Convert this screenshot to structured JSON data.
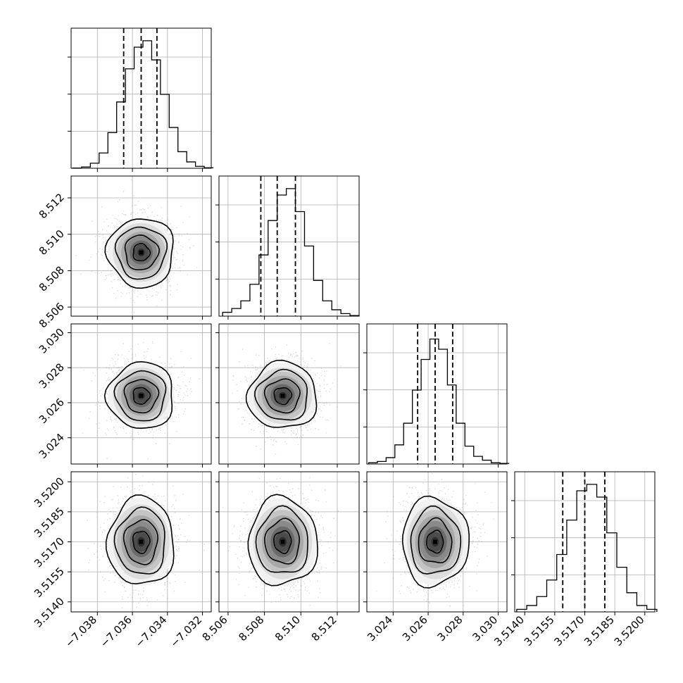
{
  "chart_data": {
    "type": "corner",
    "n_params": 4,
    "params": [
      {
        "range": [
          -7.0395,
          -7.0315
        ],
        "ticks": [
          -7.038,
          -7.036,
          -7.034,
          -7.032
        ],
        "tick_labels": [
          "−7.038",
          "−7.036",
          "−7.034",
          "−7.032"
        ],
        "mean": -7.0355,
        "sd": 0.00095,
        "quantiles": [
          -7.0365,
          -7.0355,
          -7.0346
        ],
        "hist_bins": [
          -7.0394,
          -7.0389,
          -7.0384,
          -7.0379,
          -7.0374,
          -7.0369,
          -7.0364,
          -7.0359,
          -7.0354,
          -7.0349,
          -7.0344,
          -7.0339,
          -7.0334,
          -7.0329,
          -7.0324,
          -7.0319
        ],
        "hist_counts": [
          0.002,
          0.01,
          0.04,
          0.12,
          0.28,
          0.52,
          0.78,
          0.95,
          1.0,
          0.85,
          0.58,
          0.32,
          0.13,
          0.05,
          0.015,
          0.004
        ]
      },
      {
        "range": [
          8.5055,
          8.5132
        ],
        "ticks": [
          8.506,
          8.508,
          8.51,
          8.512
        ],
        "tick_labels": [
          "8.506",
          "8.508",
          "8.510",
          "8.512"
        ],
        "mean": 8.509,
        "sd": 0.00095,
        "quantiles": [
          8.5078,
          8.5087,
          8.5097
        ],
        "hist_bins": [
          8.5057,
          8.5062,
          8.5067,
          8.5072,
          8.5077,
          8.5082,
          8.5087,
          8.5092,
          8.5097,
          8.5102,
          8.5107,
          8.5112,
          8.5117,
          8.5122,
          8.5127
        ],
        "hist_counts": [
          0.03,
          0.06,
          0.12,
          0.25,
          0.48,
          0.75,
          0.95,
          1.0,
          0.82,
          0.55,
          0.28,
          0.12,
          0.05,
          0.02,
          0.005
        ]
      },
      {
        "range": [
          3.0225,
          3.0305
        ],
        "ticks": [
          3.024,
          3.026,
          3.028,
          3.03
        ],
        "tick_labels": [
          "3.024",
          "3.026",
          "3.028",
          "3.030"
        ],
        "mean": 3.0264,
        "sd": 0.00095,
        "quantiles": [
          3.0254,
          3.0264,
          3.0274
        ],
        "hist_bins": [
          3.0226,
          3.0231,
          3.0236,
          3.0241,
          3.0246,
          3.0251,
          3.0256,
          3.0261,
          3.0266,
          3.0271,
          3.0276,
          3.0281,
          3.0286,
          3.0291,
          3.0296,
          3.0301
        ],
        "hist_counts": [
          0.01,
          0.02,
          0.05,
          0.15,
          0.32,
          0.58,
          0.82,
          0.98,
          0.9,
          0.62,
          0.32,
          0.14,
          0.06,
          0.03,
          0.01,
          0.005
        ]
      },
      {
        "range": [
          3.5135,
          3.5205
        ],
        "ticks": [
          3.514,
          3.5155,
          3.517,
          3.5185,
          3.52
        ],
        "tick_labels": [
          "3.5140",
          "3.5155",
          "3.5170",
          "3.5185",
          "3.5200"
        ],
        "mean": 3.517,
        "sd": 0.0011,
        "quantiles": [
          3.5159,
          3.517,
          3.518
        ],
        "hist_bins": [
          3.5136,
          3.5141,
          3.5146,
          3.5151,
          3.5156,
          3.5161,
          3.5166,
          3.5171,
          3.5176,
          3.5181,
          3.5186,
          3.5191,
          3.5196,
          3.5201
        ],
        "hist_counts": [
          0.02,
          0.05,
          0.12,
          0.25,
          0.45,
          0.72,
          0.95,
          1.0,
          0.9,
          0.62,
          0.35,
          0.15,
          0.05,
          0.02
        ]
      }
    ],
    "grid": true,
    "contours": true,
    "contour_levels": [
      0.5,
      1.0,
      1.5,
      2.0
    ]
  }
}
